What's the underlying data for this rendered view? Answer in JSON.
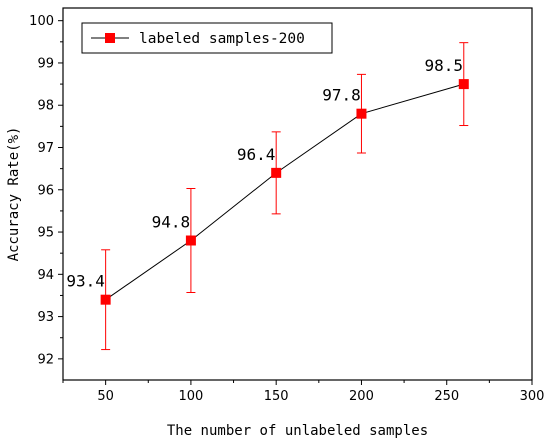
{
  "chart_data": {
    "type": "line",
    "title": "",
    "xlabel": "The number of unlabeled samples",
    "ylabel": "Accuracy Rate(%)",
    "xlim": [
      25,
      300
    ],
    "ylim": [
      91.5,
      100.3
    ],
    "x_ticks": [
      50,
      100,
      150,
      200,
      250,
      300
    ],
    "y_ticks": [
      92,
      93,
      94,
      95,
      96,
      97,
      98,
      99,
      100
    ],
    "grid": false,
    "legend_position": "top-left",
    "series": [
      {
        "name": "labeled samples-200",
        "color": "#ff0000",
        "line_color": "#000000",
        "marker": "square",
        "x": [
          50,
          100,
          150,
          200,
          260
        ],
        "y": [
          93.4,
          94.8,
          96.4,
          97.8,
          98.5
        ],
        "error": [
          1.18,
          1.23,
          0.97,
          0.93,
          0.98
        ],
        "labels": [
          "93.4",
          "94.8",
          "96.4",
          "97.8",
          "98.5"
        ]
      }
    ]
  }
}
